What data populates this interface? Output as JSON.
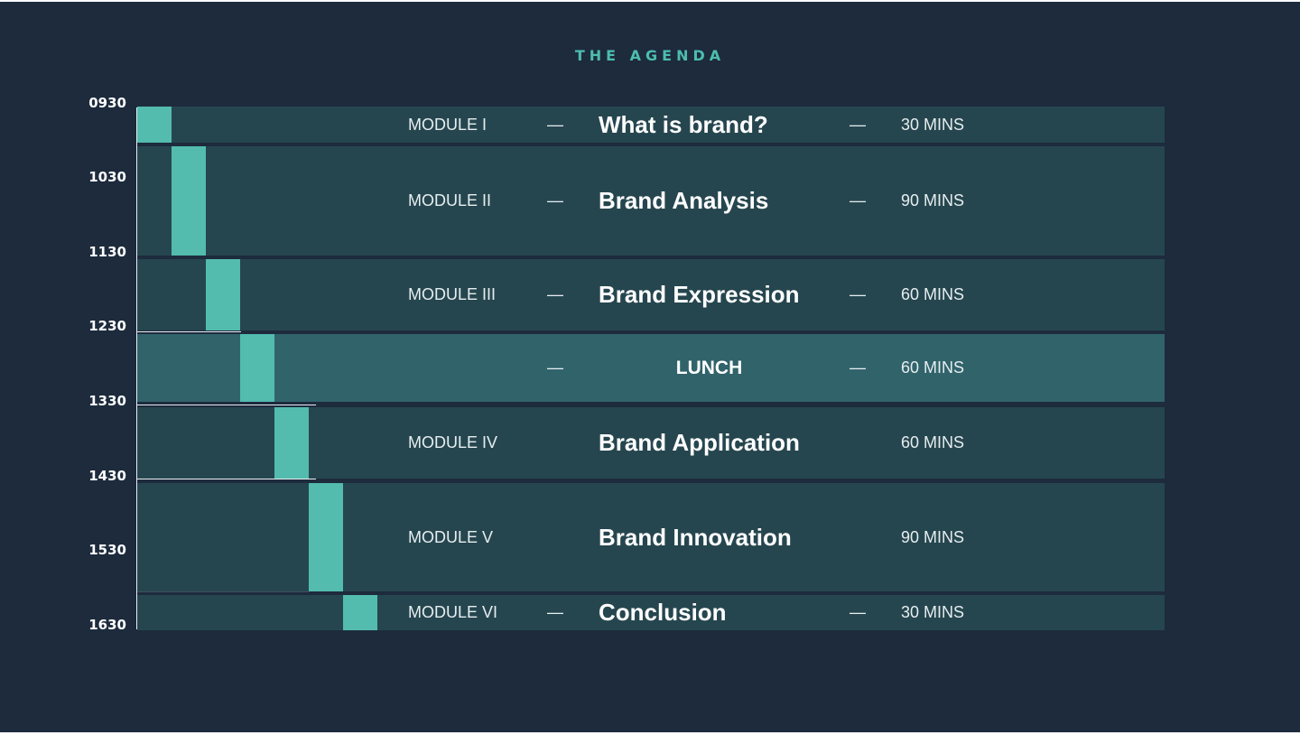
{
  "title": "THE AGENDA",
  "times": [
    "0930",
    "1030",
    "1130",
    "1230",
    "1330",
    "1430",
    "1530",
    "1630"
  ],
  "rows": [
    {
      "module": "MODULE I",
      "dash1": "—",
      "topic": "What is brand?",
      "dash2": "—",
      "duration": "30 MINS"
    },
    {
      "module": "MODULE II",
      "dash1": "—",
      "topic": "Brand Analysis",
      "dash2": "—",
      "duration": "90 MINS"
    },
    {
      "module": "MODULE III",
      "dash1": "—",
      "topic": "Brand Expression",
      "dash2": "—",
      "duration": "60 MINS"
    },
    {
      "module": "",
      "dash1": "—",
      "topic": "LUNCH",
      "dash2": "—",
      "duration": "60 MINS"
    },
    {
      "module": "MODULE IV",
      "dash1": "",
      "topic": "Brand Application",
      "dash2": "",
      "duration": "60 MINS"
    },
    {
      "module": "MODULE V",
      "dash1": "",
      "topic": "Brand Innovation",
      "dash2": "",
      "duration": "90 MINS"
    },
    {
      "module": "MODULE VI",
      "dash1": "—",
      "topic": "Conclusion",
      "dash2": "—",
      "duration": "30 MINS"
    }
  ],
  "colors": {
    "background": "#1d2b3d",
    "row": "#26464f",
    "lunch_row": "#31636b",
    "accent": "#53bcae",
    "title": "#4dbdb0"
  }
}
